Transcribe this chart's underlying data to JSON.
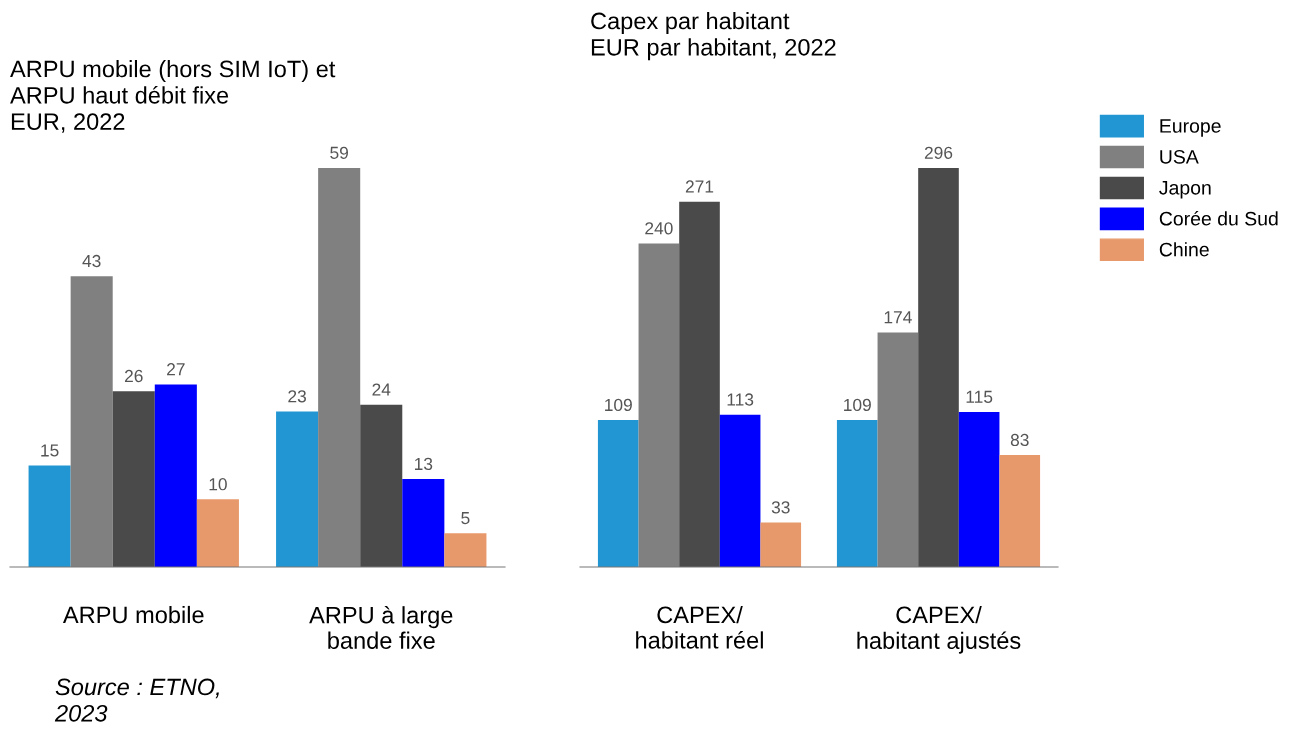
{
  "chart_data": [
    {
      "type": "bar",
      "title": "ARPU mobile (hors SIM IoT) et\nARPU haut débit fixe\nEUR, 2022",
      "categories": [
        "ARPU mobile",
        "ARPU à large\nbande fixe"
      ],
      "series": [
        {
          "name": "Europe",
          "color": "#2196d3",
          "values": [
            15,
            23
          ]
        },
        {
          "name": "USA",
          "color": "#808080",
          "values": [
            43,
            59
          ]
        },
        {
          "name": "Japon",
          "color": "#4a4a4a",
          "values": [
            26,
            24
          ]
        },
        {
          "name": "Corée du Sud",
          "color": "#0000ff",
          "values": [
            27,
            13
          ]
        },
        {
          "name": "Chine",
          "color": "#e8996b",
          "values": [
            10,
            5
          ]
        }
      ],
      "data_labels": true,
      "tick_labels": "x",
      "legend": "right",
      "grid": false,
      "annotations": [
        "Source : ETNO,\n2023"
      ]
    },
    {
      "type": "bar",
      "title": "Capex par habitant\nEUR par habitant, 2022",
      "categories": [
        "CAPEX/\nhabitant réel",
        "CAPEX/\nhabitant ajustés"
      ],
      "series": [
        {
          "name": "Europe",
          "color": "#2196d3",
          "values": [
            109,
            109
          ]
        },
        {
          "name": "USA",
          "color": "#808080",
          "values": [
            240,
            174
          ]
        },
        {
          "name": "Japon",
          "color": "#4a4a4a",
          "values": [
            271,
            296
          ]
        },
        {
          "name": "Corée du Sud",
          "color": "#0000ff",
          "values": [
            113,
            115
          ]
        },
        {
          "name": "Chine",
          "color": "#e8996b",
          "values": [
            33,
            83
          ]
        }
      ],
      "data_labels": true,
      "tick_labels": "x",
      "legend": "right",
      "grid": false
    }
  ]
}
